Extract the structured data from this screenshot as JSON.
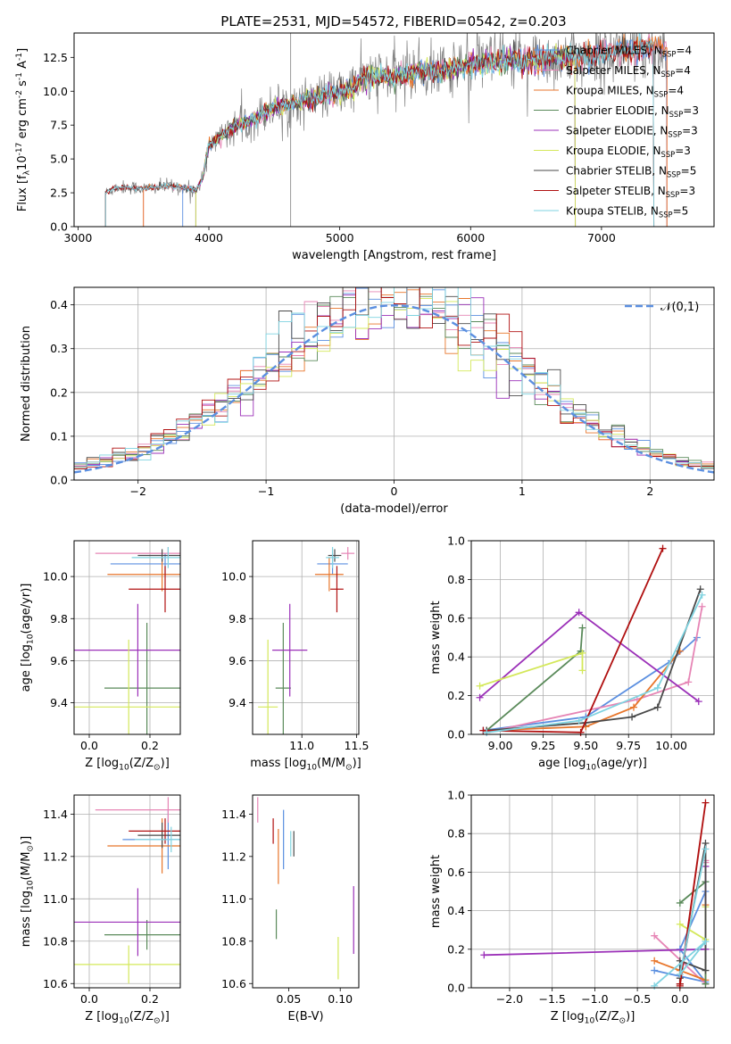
{
  "figure": {
    "title": "PLATE=2531, MJD=54572, FIBERID=0542, z=0.203"
  },
  "models": [
    {
      "label": "Chabrier MILES, N$_{SSP}$=4",
      "name": "Chabrier MILES",
      "n": "4",
      "color": "#5b8fe0"
    },
    {
      "label": "Salpeter MILES, N$_{SSP}$=4",
      "name": "Salpeter MILES",
      "n": "4",
      "color": "#e685b5"
    },
    {
      "label": "Kroupa MILES, N$_{SSP}$=4",
      "name": "Kroupa MILES",
      "n": "4",
      "color": "#e8762b"
    },
    {
      "label": "Chabrier ELODIE, N$_{SSP}$=3",
      "name": "Chabrier ELODIE",
      "n": "3",
      "color": "#5a8a5a"
    },
    {
      "label": "Salpeter ELODIE, N$_{SSP}$=3",
      "name": "Salpeter ELODIE",
      "n": "3",
      "color": "#9b30b8"
    },
    {
      "label": "Kroupa ELODIE, N$_{SSP}$=3",
      "name": "Kroupa ELODIE",
      "n": "3",
      "color": "#d4e85a"
    },
    {
      "label": "Chabrier STELIB, N$_{SSP}$=5",
      "name": "Chabrier STELIB",
      "n": "5",
      "color": "#4a4a4a"
    },
    {
      "label": "Salpeter STELIB, N$_{SSP}$=3",
      "name": "Salpeter STELIB",
      "n": "3",
      "color": "#b01010"
    },
    {
      "label": "Kroupa STELIB, N$_{SSP}$=5",
      "name": "Kroupa STELIB",
      "n": "5",
      "color": "#7fd3e0"
    }
  ],
  "chart_data": [
    {
      "id": "spectrum",
      "type": "line",
      "title": "PLATE=2531, MJD=54572, FIBERID=0542, z=0.203",
      "xlabel": "wavelength [Angstrom, rest frame]",
      "ylabel": "Flux [f$_\\lambda$10$^{-17}$ erg cm$^{-2}$ s$^{-1}$ A$^{-1}$]",
      "xlim": [
        2970,
        7860
      ],
      "ylim": [
        0,
        14.3
      ],
      "xticks": [
        3000,
        4000,
        5000,
        6000,
        7000
      ],
      "yticks": [
        0.0,
        2.5,
        5.0,
        7.5,
        10.0,
        12.5
      ],
      "data_color": "#808080",
      "data_x_range": [
        3210,
        7500
      ],
      "continuum": {
        "x": [
          3210,
          3300,
          3400,
          3500,
          3600,
          3700,
          3800,
          3900,
          3950,
          4000,
          4100,
          4200,
          4300,
          4400,
          4500,
          4600,
          4700,
          4800,
          4900,
          5000,
          5100,
          5200,
          5300,
          5400,
          5500,
          5600,
          5700,
          5800,
          5900,
          6000,
          6100,
          6200,
          6300,
          6400,
          6500,
          6600,
          6700,
          6800,
          6900,
          7000,
          7100,
          7200,
          7300,
          7400,
          7500
        ],
        "y": [
          2.5,
          2.9,
          2.9,
          2.8,
          2.9,
          3.0,
          2.9,
          2.7,
          3.5,
          6.0,
          6.7,
          7.4,
          7.8,
          8.3,
          8.9,
          9.0,
          9.2,
          9.5,
          9.7,
          9.9,
          10.3,
          11.0,
          11.2,
          11.0,
          11.3,
          11.5,
          11.4,
          11.6,
          11.8,
          12.0,
          12.1,
          12.2,
          12.3,
          12.2,
          12.3,
          12.4,
          12.5,
          12.5,
          12.6,
          12.7,
          12.9,
          13.0,
          13.1,
          13.2,
          13.3
        ]
      },
      "model_ranges": [
        [
          3800,
          7500
        ],
        [
          3500,
          7500
        ],
        [
          3500,
          7500
        ],
        [
          3900,
          6800
        ],
        [
          3900,
          6800
        ],
        [
          3900,
          6800
        ],
        [
          3210,
          7400
        ],
        [
          3210,
          7400
        ],
        [
          3210,
          7400
        ]
      ],
      "legend": "upper right"
    },
    {
      "id": "residuals",
      "type": "step",
      "xlabel": "(data-model)/error",
      "ylabel": "Normed distribution",
      "xlim": [
        -2.5,
        2.5
      ],
      "ylim": [
        0,
        0.44
      ],
      "xticks": [
        -2,
        -1,
        0,
        1,
        2
      ],
      "yticks": [
        0.0,
        0.1,
        0.2,
        0.3,
        0.4
      ],
      "bin_width": 0.1,
      "grid": true,
      "gaussian_label": "$\\mathcal{N}(0,1)$",
      "gaussian_color": "#5b8fe0",
      "legend": "upper right"
    },
    {
      "id": "age-vs-Z",
      "type": "errorbar",
      "xlabel": "Z [log$_{10}$(Z/Z$_\\odot$)]",
      "ylabel": "age  [log$_{10}$(age/yr)]",
      "xlim": [
        -0.05,
        0.3
      ],
      "ylim": [
        9.25,
        10.17
      ],
      "xticks": [
        0.0,
        0.2
      ],
      "yticks": [
        9.4,
        9.6,
        9.8,
        10.0
      ],
      "grid": true,
      "points": [
        {
          "model": 0,
          "x": 0.25,
          "y": 10.06,
          "xerr": 0.18,
          "yerr": 0.05
        },
        {
          "model": 1,
          "x": 0.26,
          "y": 10.11,
          "xerr": 0.24,
          "yerr": 0.03
        },
        {
          "model": 2,
          "x": 0.24,
          "y": 10.01,
          "xerr": 0.18,
          "yerr": 0.08
        },
        {
          "model": 3,
          "x": 0.19,
          "y": 9.47,
          "xerr": 0.14,
          "yerr": 0.31
        },
        {
          "model": 4,
          "x": 0.16,
          "y": 9.65,
          "xerr": 0.24,
          "yerr": 0.22
        },
        {
          "model": 5,
          "x": 0.13,
          "y": 9.38,
          "xerr": 0.46,
          "yerr": 0.32
        },
        {
          "model": 6,
          "x": 0.24,
          "y": 10.1,
          "xerr": 0.08,
          "yerr": 0.03
        },
        {
          "model": 7,
          "x": 0.25,
          "y": 9.94,
          "xerr": 0.12,
          "yerr": 0.11
        },
        {
          "model": 8,
          "x": 0.26,
          "y": 10.09,
          "xerr": 0.12,
          "yerr": 0.05
        }
      ]
    },
    {
      "id": "age-vs-mass",
      "type": "errorbar",
      "xlabel": "mass [log$_{10}$(M/M$_\\odot$)]",
      "ylabel": "",
      "xlim": [
        10.55,
        11.52
      ],
      "ylim": [
        9.25,
        10.17
      ],
      "xticks": [
        11.0,
        11.5
      ],
      "yticks": [
        9.4,
        9.6,
        9.8,
        10.0
      ],
      "grid": true,
      "points": [
        {
          "model": 0,
          "x": 11.28,
          "y": 10.06,
          "xerr": 0.14,
          "yerr": 0.05
        },
        {
          "model": 1,
          "x": 11.42,
          "y": 10.11,
          "xerr": 0.06,
          "yerr": 0.03
        },
        {
          "model": 2,
          "x": 11.25,
          "y": 10.01,
          "xerr": 0.13,
          "yerr": 0.08
        },
        {
          "model": 3,
          "x": 10.83,
          "y": 9.47,
          "xerr": 0.07,
          "yerr": 0.31
        },
        {
          "model": 4,
          "x": 10.89,
          "y": 9.65,
          "xerr": 0.16,
          "yerr": 0.22
        },
        {
          "model": 5,
          "x": 10.69,
          "y": 9.38,
          "xerr": 0.09,
          "yerr": 0.32
        },
        {
          "model": 6,
          "x": 11.3,
          "y": 10.1,
          "xerr": 0.06,
          "yerr": 0.03
        },
        {
          "model": 7,
          "x": 11.32,
          "y": 9.94,
          "xerr": 0.06,
          "yerr": 0.11
        },
        {
          "model": 8,
          "x": 11.28,
          "y": 10.09,
          "xerr": 0.06,
          "yerr": 0.05
        }
      ]
    },
    {
      "id": "weight-vs-age",
      "type": "line",
      "xlabel": "age  [log$_{10}$(age/yr)]",
      "ylabel": "mass weight",
      "xlim": [
        8.83,
        10.25
      ],
      "ylim": [
        0,
        1.0
      ],
      "xticks": [
        9.0,
        9.25,
        9.5,
        9.75,
        10.0
      ],
      "yticks": [
        0.0,
        0.2,
        0.4,
        0.6,
        0.8,
        1.0
      ],
      "grid": true,
      "series": [
        {
          "model": 0,
          "x": [
            8.9,
            9.5,
            10.0,
            10.15
          ],
          "y": [
            0.02,
            0.09,
            0.38,
            0.5
          ]
        },
        {
          "model": 1,
          "x": [
            8.92,
            9.8,
            10.1,
            10.18
          ],
          "y": [
            0.01,
            0.18,
            0.27,
            0.66
          ]
        },
        {
          "model": 2,
          "x": [
            8.92,
            9.5,
            9.78,
            10.05
          ],
          "y": [
            0.02,
            0.04,
            0.14,
            0.43
          ]
        },
        {
          "model": 3,
          "x": [
            8.92,
            9.47,
            9.48
          ],
          "y": [
            0.02,
            0.43,
            0.55
          ]
        },
        {
          "model": 4,
          "x": [
            8.88,
            9.46,
            10.16
          ],
          "y": [
            0.19,
            0.63,
            0.17
          ]
        },
        {
          "model": 5,
          "x": [
            8.88,
            9.48,
            9.48
          ],
          "y": [
            0.25,
            0.42,
            0.33
          ]
        },
        {
          "model": 6,
          "x": [
            8.92,
            9.5,
            9.77,
            9.92,
            10.17
          ],
          "y": [
            0.02,
            0.06,
            0.09,
            0.14,
            0.75
          ]
        },
        {
          "model": 7,
          "x": [
            8.9,
            9.47,
            9.95
          ],
          "y": [
            0.02,
            0.01,
            0.96
          ]
        },
        {
          "model": 8,
          "x": [
            8.92,
            9.46,
            9.92,
            10.18
          ],
          "y": [
            0.01,
            0.07,
            0.24,
            0.72
          ]
        }
      ]
    },
    {
      "id": "mass-vs-Z",
      "type": "errorbar",
      "xlabel": "Z [log$_{10}$(Z/Z$_\\odot$)]",
      "ylabel": "mass [log$_{10}$(M/M$_\\odot$)]",
      "xlim": [
        -0.05,
        0.3
      ],
      "ylim": [
        10.58,
        11.49
      ],
      "xticks": [
        0.0,
        0.2
      ],
      "yticks": [
        10.6,
        10.8,
        11.0,
        11.2,
        11.4
      ],
      "grid": true,
      "points": [
        {
          "model": 0,
          "x": 0.26,
          "y": 11.28,
          "xerr": 0.15,
          "yerr": 0.14
        },
        {
          "model": 1,
          "x": 0.26,
          "y": 11.42,
          "xerr": 0.24,
          "yerr": 0.06
        },
        {
          "model": 2,
          "x": 0.24,
          "y": 11.25,
          "xerr": 0.18,
          "yerr": 0.13
        },
        {
          "model": 3,
          "x": 0.19,
          "y": 10.83,
          "xerr": 0.14,
          "yerr": 0.07
        },
        {
          "model": 4,
          "x": 0.16,
          "y": 10.89,
          "xerr": 0.24,
          "yerr": 0.16
        },
        {
          "model": 5,
          "x": 0.13,
          "y": 10.69,
          "xerr": 0.46,
          "yerr": 0.09
        },
        {
          "model": 6,
          "x": 0.24,
          "y": 11.3,
          "xerr": 0.08,
          "yerr": 0.06
        },
        {
          "model": 7,
          "x": 0.25,
          "y": 11.32,
          "xerr": 0.12,
          "yerr": 0.06
        },
        {
          "model": 8,
          "x": 0.27,
          "y": 11.28,
          "xerr": 0.12,
          "yerr": 0.06
        }
      ]
    },
    {
      "id": "mass-vs-EBV",
      "type": "errorbar",
      "xlabel": "E(B-V)",
      "ylabel": "",
      "xlim": [
        0.015,
        0.118
      ],
      "ylim": [
        10.58,
        11.49
      ],
      "xticks": [
        0.05,
        0.1
      ],
      "yticks": [
        10.6,
        10.8,
        11.0,
        11.2,
        11.4
      ],
      "grid": false,
      "points": [
        {
          "model": 0,
          "x": 0.045,
          "y": 11.28,
          "xerr": 0.0,
          "yerr": 0.14
        },
        {
          "model": 1,
          "x": 0.02,
          "y": 11.42,
          "xerr": 0.0,
          "yerr": 0.06
        },
        {
          "model": 2,
          "x": 0.04,
          "y": 11.2,
          "xerr": 0.0,
          "yerr": 0.13
        },
        {
          "model": 3,
          "x": 0.038,
          "y": 10.88,
          "xerr": 0.0,
          "yerr": 0.07
        },
        {
          "model": 4,
          "x": 0.113,
          "y": 10.9,
          "xerr": 0.0,
          "yerr": 0.16
        },
        {
          "model": 5,
          "x": 0.098,
          "y": 10.72,
          "xerr": 0.0,
          "yerr": 0.1
        },
        {
          "model": 6,
          "x": 0.055,
          "y": 11.26,
          "xerr": 0.0,
          "yerr": 0.06
        },
        {
          "model": 7,
          "x": 0.035,
          "y": 11.32,
          "xerr": 0.0,
          "yerr": 0.06
        },
        {
          "model": 8,
          "x": 0.052,
          "y": 11.26,
          "xerr": 0.0,
          "yerr": 0.06
        }
      ]
    },
    {
      "id": "weight-vs-Z",
      "type": "line",
      "xlabel": "Z [log$_{10}$(Z/Z$_\\odot$)]",
      "ylabel": "mass weight",
      "xlim": [
        -2.45,
        0.4
      ],
      "ylim": [
        0,
        1.0
      ],
      "xticks": [
        -2.0,
        -1.5,
        -1.0,
        -0.5,
        0.0
      ],
      "yticks": [
        0.0,
        0.2,
        0.4,
        0.6,
        0.8,
        1.0
      ],
      "grid": true,
      "series": [
        {
          "model": 0,
          "x": [
            -0.3,
            0.3,
            0.0,
            0.3
          ],
          "y": [
            0.09,
            0.03,
            0.2,
            0.5
          ]
        },
        {
          "model": 1,
          "x": [
            -0.3,
            0.3,
            0.3,
            0.3
          ],
          "y": [
            0.27,
            0.02,
            0.65,
            0.66
          ]
        },
        {
          "model": 2,
          "x": [
            -0.3,
            0.0,
            0.3,
            0.3
          ],
          "y": [
            0.14,
            0.09,
            0.04,
            0.43
          ]
        },
        {
          "model": 3,
          "x": [
            0.0,
            0.3,
            0.3
          ],
          "y": [
            0.44,
            0.55,
            0.02
          ]
        },
        {
          "model": 4,
          "x": [
            -2.3,
            0.3,
            0.3
          ],
          "y": [
            0.17,
            0.2,
            0.63
          ]
        },
        {
          "model": 5,
          "x": [
            0.0,
            0.3,
            0.3
          ],
          "y": [
            0.33,
            0.25,
            0.42
          ]
        },
        {
          "model": 6,
          "x": [
            0.0,
            0.0,
            0.3,
            0.3,
            0.0
          ],
          "y": [
            0.02,
            0.14,
            0.09,
            0.75,
            0.05
          ]
        },
        {
          "model": 7,
          "x": [
            0.0,
            0.3,
            0.0
          ],
          "y": [
            0.02,
            0.96,
            0.01
          ]
        },
        {
          "model": 8,
          "x": [
            -0.3,
            0.3,
            0.0,
            0.3
          ],
          "y": [
            0.01,
            0.24,
            0.07,
            0.72
          ]
        }
      ]
    }
  ]
}
